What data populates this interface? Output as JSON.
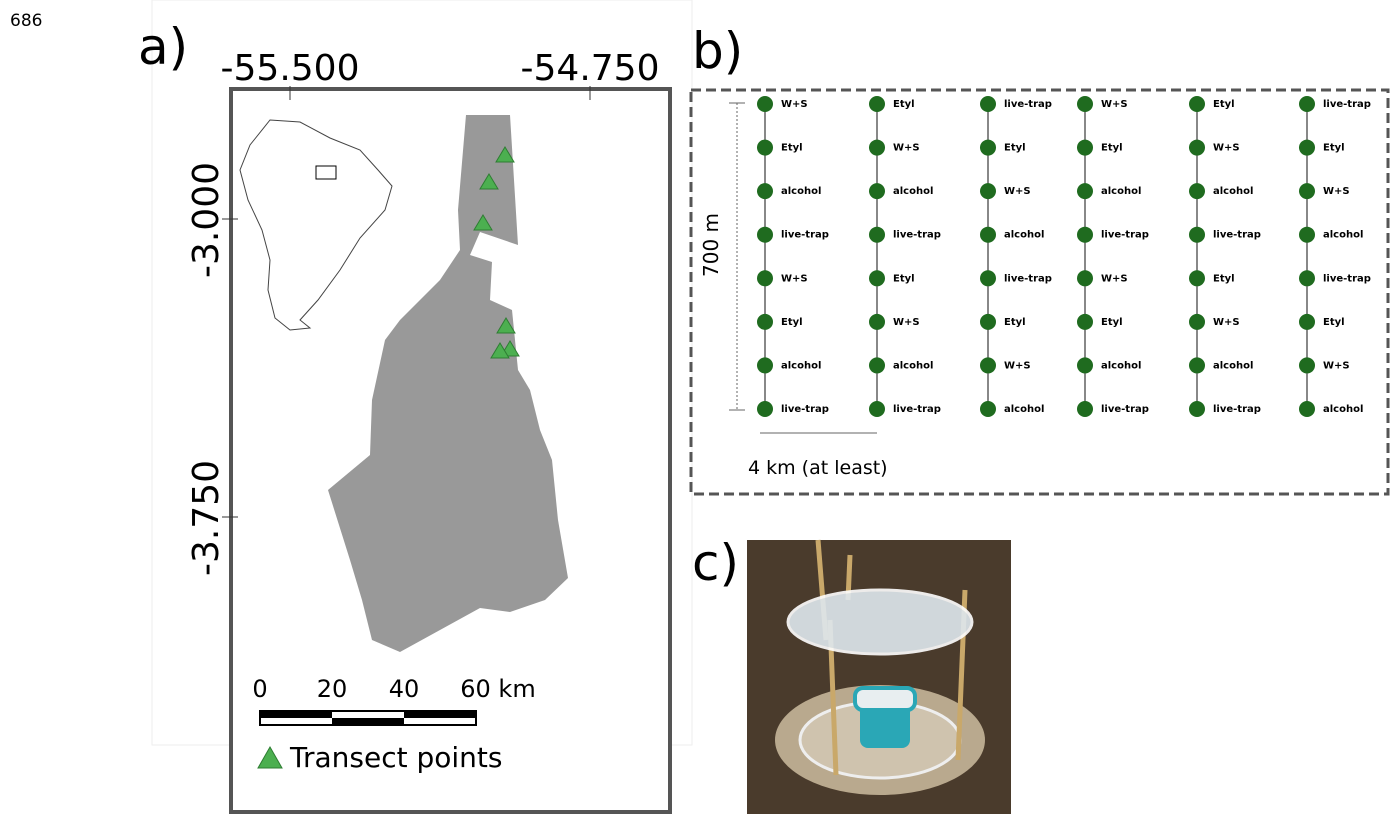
{
  "line_number": "686",
  "panel_a": {
    "label": "a)",
    "x_ticks": [
      "-55.500",
      "-54.750"
    ],
    "y_ticks": [
      "-3.000",
      "-3.750"
    ],
    "scale_bar": [
      "0",
      "20",
      "40",
      "60 km"
    ],
    "legend": "Transect points"
  },
  "panel_b": {
    "label": "b)",
    "height_label": "700 m",
    "width_label": "4 km (at least)",
    "transects": [
      [
        "W+S",
        "Etyl",
        "alcohol",
        "live-trap",
        "W+S",
        "Etyl",
        "alcohol",
        "live-trap"
      ],
      [
        "Etyl",
        "W+S",
        "alcohol",
        "live-trap",
        "Etyl",
        "W+S",
        "alcohol",
        "live-trap"
      ],
      [
        "live-trap",
        "Etyl",
        "W+S",
        "alcohol",
        "live-trap",
        "Etyl",
        "W+S",
        "alcohol"
      ],
      [
        "W+S",
        "Etyl",
        "alcohol",
        "live-trap",
        "W+S",
        "Etyl",
        "alcohol",
        "live-trap"
      ],
      [
        "Etyl",
        "W+S",
        "alcohol",
        "live-trap",
        "Etyl",
        "W+S",
        "alcohol",
        "live-trap"
      ],
      [
        "live-trap",
        "Etyl",
        "W+S",
        "alcohol",
        "live-trap",
        "Etyl",
        "W+S",
        "alcohol"
      ]
    ]
  },
  "panel_c": {
    "label": "c)"
  }
}
